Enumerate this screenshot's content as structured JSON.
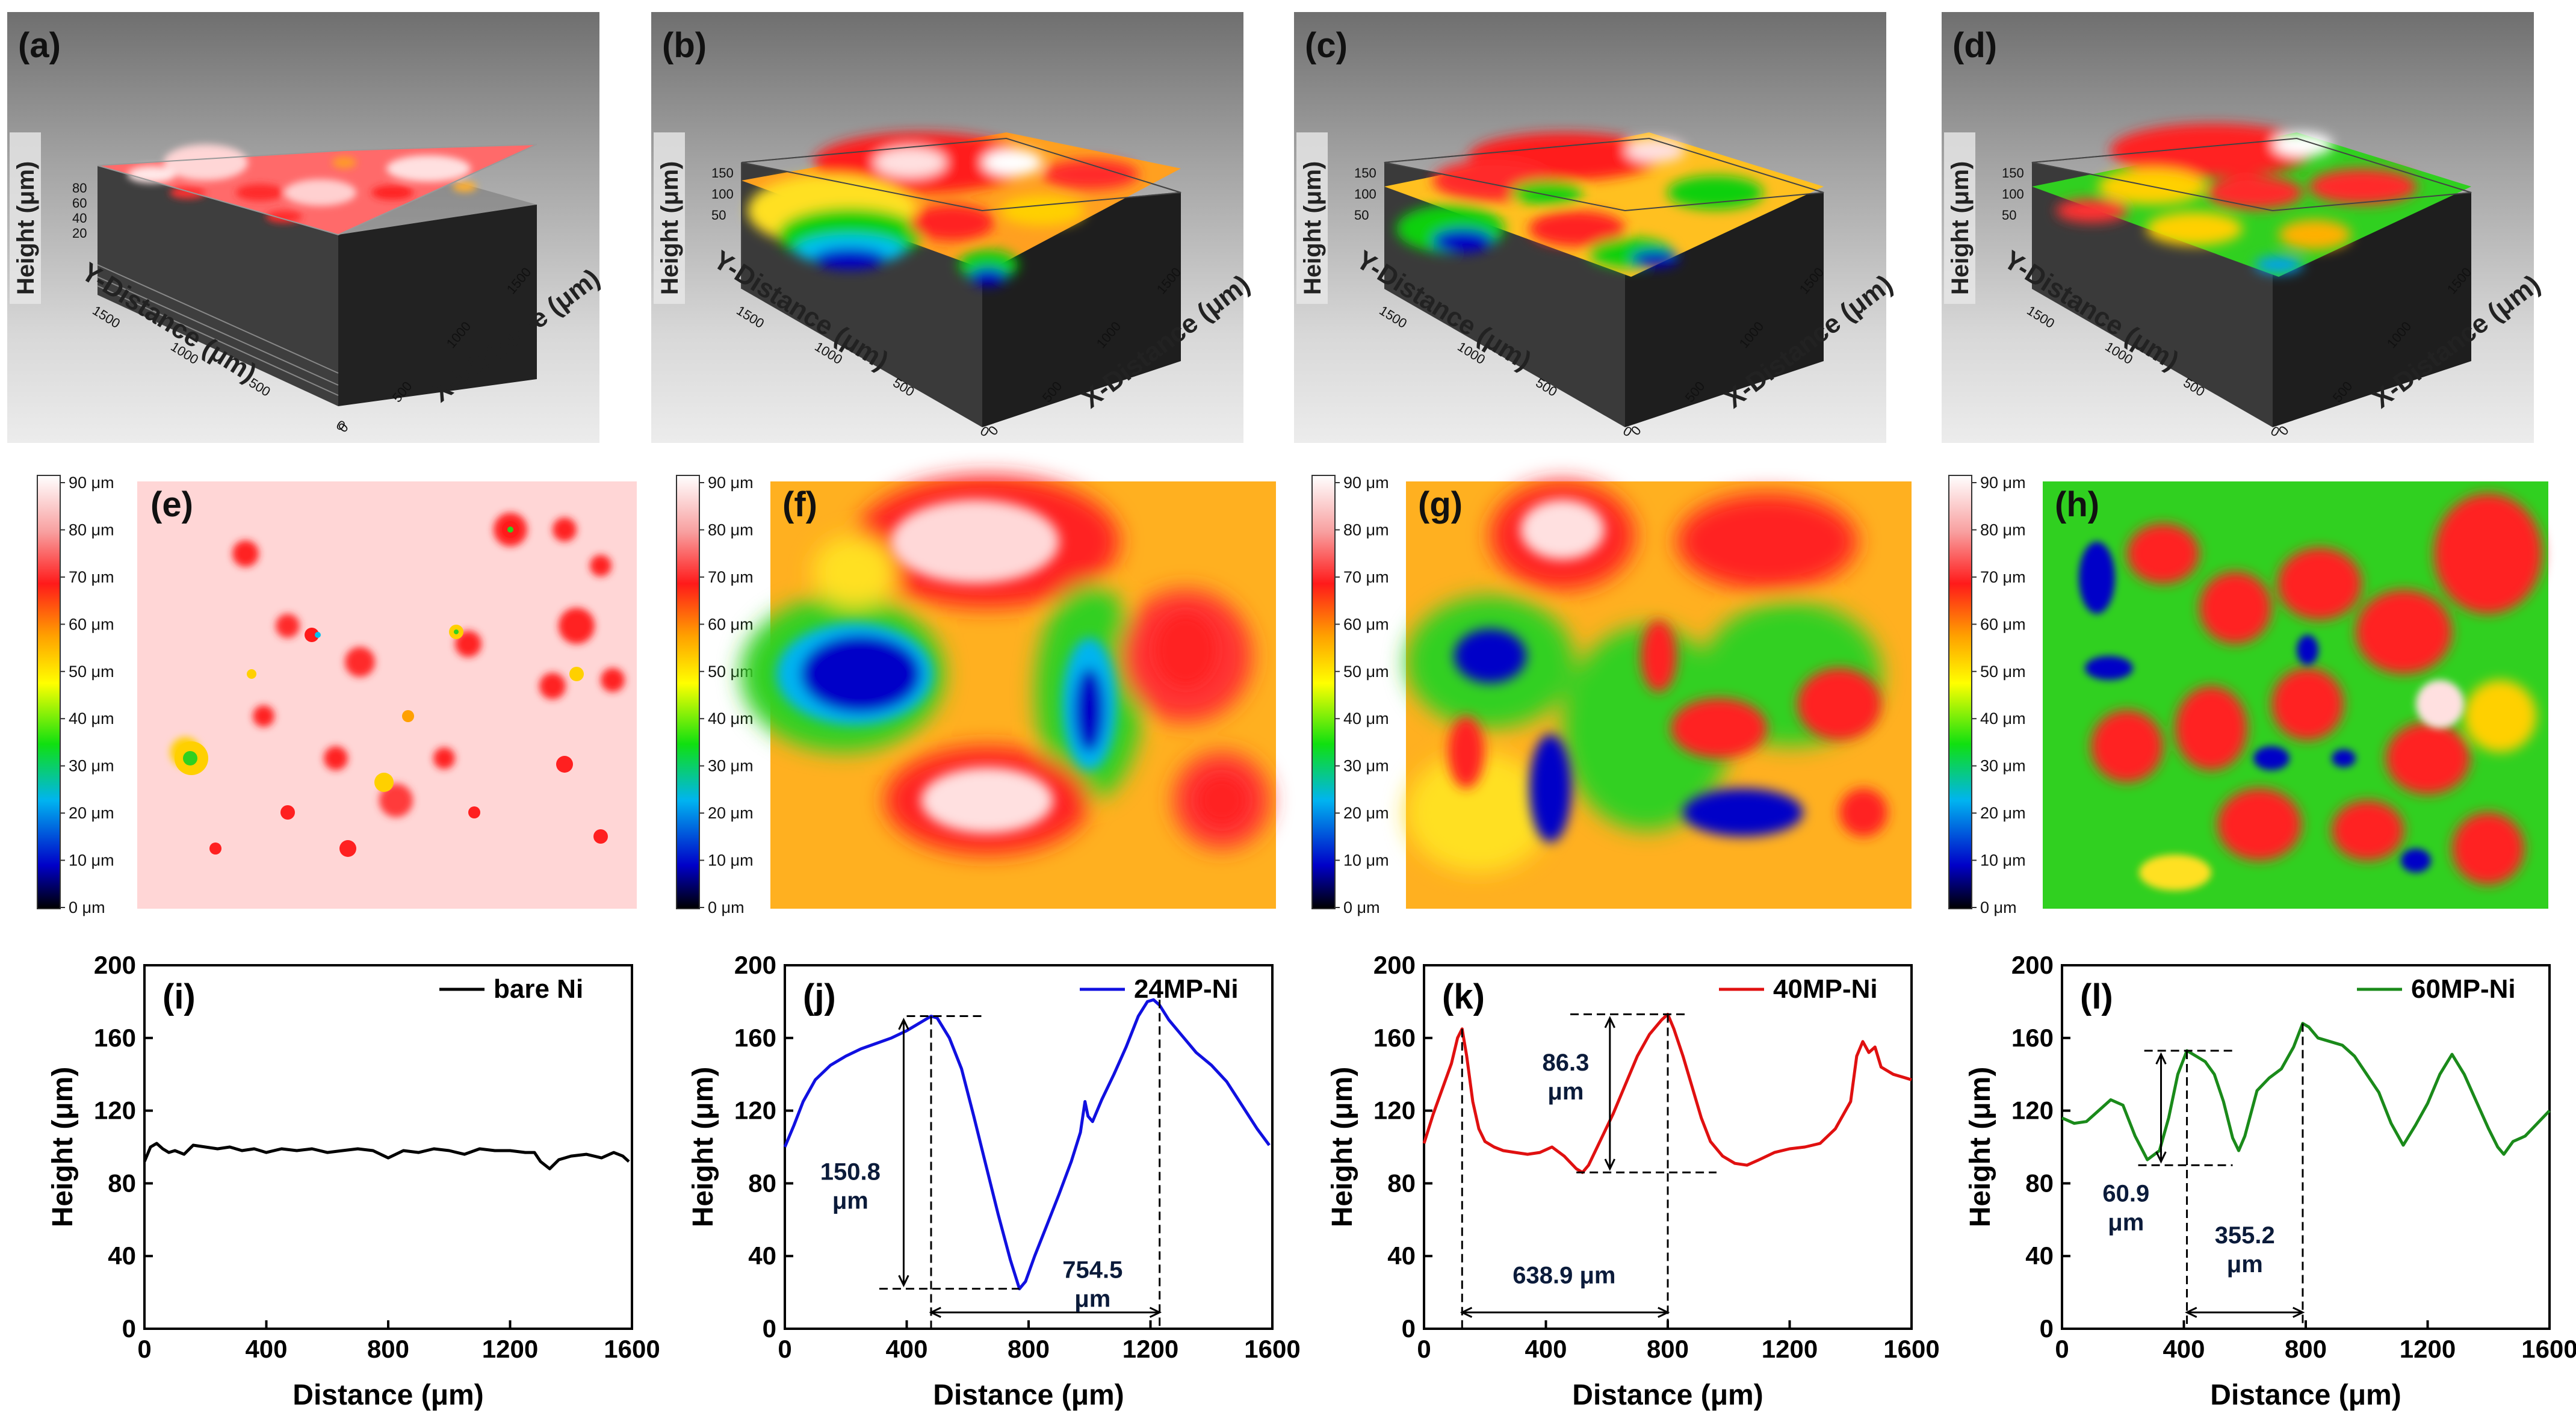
{
  "panels_3d": [
    {
      "label": "(a)",
      "z_label": "Height (μm)",
      "z_ticks": [
        "80",
        "60",
        "40",
        "20"
      ],
      "y_label": "Y-Distance (μm)",
      "x_label": "X-Distance (μm)",
      "y_ticks": [
        "1500",
        "1000",
        "500",
        "0"
      ],
      "x_ticks": [
        "0",
        "500",
        "1000",
        "1500"
      ]
    },
    {
      "label": "(b)",
      "z_label": "Height (μm)",
      "z_ticks": [
        "150",
        "100",
        "50"
      ],
      "y_label": "Y-Distance (μm)",
      "x_label": "X-Distance (μm)",
      "y_ticks": [
        "1500",
        "1000",
        "500",
        "0"
      ],
      "x_ticks": [
        "0",
        "500",
        "1000",
        "1500"
      ]
    },
    {
      "label": "(c)",
      "z_label": "Height (μm)",
      "z_ticks": [
        "150",
        "100",
        "50"
      ],
      "y_label": "Y-Distance (μm)",
      "x_label": "X-Distance (μm)",
      "y_ticks": [
        "1500",
        "1000",
        "500",
        "0"
      ],
      "x_ticks": [
        "0",
        "500",
        "1000",
        "1500"
      ]
    },
    {
      "label": "(d)",
      "z_label": "Height (μm)",
      "z_ticks": [
        "150",
        "100",
        "50"
      ],
      "y_label": "Y-Distance (μm)",
      "x_label": "X-Distance (μm)",
      "y_ticks": [
        "1500",
        "1000",
        "500",
        "0"
      ],
      "x_ticks": [
        "0",
        "500",
        "1000",
        "1500"
      ]
    }
  ],
  "colormap_panels": [
    {
      "label": "(e)"
    },
    {
      "label": "(f)"
    },
    {
      "label": "(g)"
    },
    {
      "label": "(h)"
    }
  ],
  "colorbar_ticks": [
    "90 μm",
    "80 μm",
    "70 μm",
    "60 μm",
    "50 μm",
    "40 μm",
    "30 μm",
    "20 μm",
    "10 μm",
    "0 μm"
  ],
  "colors": {
    "bare_ni": "#000000",
    "mp24": "#1010e0",
    "mp40": "#e01010",
    "mp60": "#1a8a1a",
    "annotation": "#0b1b3a"
  },
  "chart_data": [
    {
      "type": "line",
      "label": "(i)",
      "title": "",
      "xlabel": "Distance (μm)",
      "ylabel": "Height (μm)",
      "xlim": [
        0,
        1600
      ],
      "ylim": [
        0,
        200
      ],
      "xticks": [
        0,
        400,
        800,
        1200,
        1600
      ],
      "yticks": [
        0,
        40,
        80,
        120,
        160,
        200
      ],
      "series": [
        {
          "name": "bare Ni",
          "color_key": "bare_ni",
          "x": [
            0,
            20,
            40,
            60,
            80,
            100,
            130,
            160,
            200,
            240,
            280,
            320,
            360,
            400,
            450,
            500,
            550,
            600,
            650,
            700,
            750,
            800,
            850,
            900,
            950,
            1000,
            1050,
            1100,
            1150,
            1200,
            1250,
            1280,
            1300,
            1330,
            1360,
            1400,
            1450,
            1500,
            1540,
            1570,
            1590
          ],
          "y": [
            92,
            100,
            102,
            99,
            97,
            98,
            96,
            101,
            100,
            99,
            100,
            98,
            99,
            97,
            99,
            98,
            99,
            97,
            98,
            99,
            98,
            94,
            98,
            97,
            99,
            98,
            96,
            99,
            98,
            98,
            97,
            97,
            92,
            88,
            93,
            95,
            96,
            94,
            97,
            95,
            92
          ]
        }
      ],
      "annotations": []
    },
    {
      "type": "line",
      "label": "(j)",
      "title": "",
      "xlabel": "Distance (μm)",
      "ylabel": "Height (μm)",
      "xlim": [
        0,
        1600
      ],
      "ylim": [
        0,
        200
      ],
      "xticks": [
        0,
        400,
        800,
        1200,
        1600
      ],
      "yticks": [
        0,
        40,
        80,
        120,
        160,
        200
      ],
      "series": [
        {
          "name": "24MP-Ni",
          "color_key": "mp24",
          "x": [
            0,
            30,
            60,
            100,
            150,
            200,
            250,
            300,
            350,
            400,
            430,
            460,
            480,
            500,
            540,
            580,
            620,
            660,
            700,
            740,
            770,
            790,
            820,
            860,
            900,
            940,
            970,
            985,
            995,
            1010,
            1040,
            1080,
            1120,
            1160,
            1190,
            1210,
            1230,
            1260,
            1300,
            1350,
            1400,
            1450,
            1500,
            1550,
            1590
          ],
          "y": [
            100,
            112,
            125,
            137,
            145,
            150,
            154,
            157,
            160,
            164,
            167,
            170,
            172,
            171,
            160,
            143,
            117,
            90,
            63,
            38,
            22,
            26,
            40,
            57,
            74,
            92,
            108,
            125,
            117,
            114,
            126,
            140,
            155,
            172,
            180,
            181,
            178,
            170,
            162,
            152,
            145,
            136,
            123,
            110,
            101
          ]
        }
      ],
      "annotations": [
        {
          "text": "150.8 μm",
          "lines": [
            "150.8",
            "μm"
          ]
        },
        {
          "text": "754.5 μm",
          "lines": [
            "754.5",
            "μm"
          ]
        }
      ]
    },
    {
      "type": "line",
      "label": "(k)",
      "title": "",
      "xlabel": "Distance (μm)",
      "ylabel": "Height (μm)",
      "xlim": [
        0,
        1600
      ],
      "ylim": [
        0,
        200
      ],
      "xticks": [
        0,
        400,
        800,
        1200,
        1600
      ],
      "yticks": [
        0,
        40,
        80,
        120,
        160,
        200
      ],
      "series": [
        {
          "name": "40MP-Ni",
          "color_key": "mp40",
          "x": [
            0,
            30,
            60,
            90,
            110,
            125,
            140,
            160,
            180,
            200,
            230,
            260,
            300,
            340,
            380,
            420,
            460,
            500,
            520,
            540,
            580,
            620,
            660,
            700,
            740,
            780,
            800,
            820,
            850,
            880,
            910,
            940,
            980,
            1020,
            1060,
            1100,
            1150,
            1200,
            1250,
            1300,
            1350,
            1400,
            1420,
            1440,
            1460,
            1480,
            1500,
            1540,
            1580,
            1600
          ],
          "y": [
            102,
            118,
            132,
            146,
            160,
            165,
            150,
            125,
            110,
            103,
            100,
            98,
            97,
            96,
            97,
            100,
            95,
            88,
            86,
            90,
            104,
            118,
            134,
            150,
            162,
            170,
            173,
            165,
            150,
            133,
            116,
            103,
            95,
            91,
            90,
            93,
            97,
            99,
            100,
            102,
            110,
            125,
            150,
            158,
            152,
            155,
            144,
            140,
            138,
            137
          ]
        }
      ],
      "annotations": [
        {
          "text": "86.3 μm",
          "lines": [
            "86.3",
            "μm"
          ]
        },
        {
          "text": "638.9 μm",
          "lines": [
            "638.9 μm"
          ]
        }
      ]
    },
    {
      "type": "line",
      "label": "(l)",
      "title": "",
      "xlabel": "Distance (μm)",
      "ylabel": "Height (μm)",
      "xlim": [
        0,
        1600
      ],
      "ylim": [
        0,
        200
      ],
      "xticks": [
        0,
        400,
        800,
        1200,
        1600
      ],
      "yticks": [
        0,
        40,
        80,
        120,
        160,
        200
      ],
      "series": [
        {
          "name": "60MP-Ni",
          "color_key": "mp60",
          "x": [
            0,
            40,
            80,
            120,
            160,
            200,
            240,
            280,
            320,
            350,
            380,
            410,
            440,
            470,
            500,
            530,
            560,
            580,
            600,
            640,
            680,
            720,
            760,
            790,
            810,
            840,
            880,
            920,
            960,
            1000,
            1040,
            1080,
            1120,
            1160,
            1200,
            1240,
            1280,
            1320,
            1360,
            1400,
            1430,
            1450,
            1480,
            1520,
            1560,
            1600
          ],
          "y": [
            116,
            113,
            114,
            120,
            126,
            123,
            106,
            93,
            98,
            116,
            140,
            153,
            150,
            147,
            140,
            125,
            105,
            98,
            106,
            131,
            138,
            143,
            155,
            168,
            166,
            160,
            158,
            156,
            150,
            140,
            130,
            113,
            101,
            112,
            124,
            140,
            151,
            140,
            125,
            110,
            100,
            96,
            103,
            106,
            113,
            120
          ]
        }
      ],
      "annotations": [
        {
          "text": "60.9 μm",
          "lines": [
            "60.9",
            "μm"
          ]
        },
        {
          "text": "355.2 μm",
          "lines": [
            "355.2",
            "μm"
          ]
        }
      ]
    }
  ]
}
